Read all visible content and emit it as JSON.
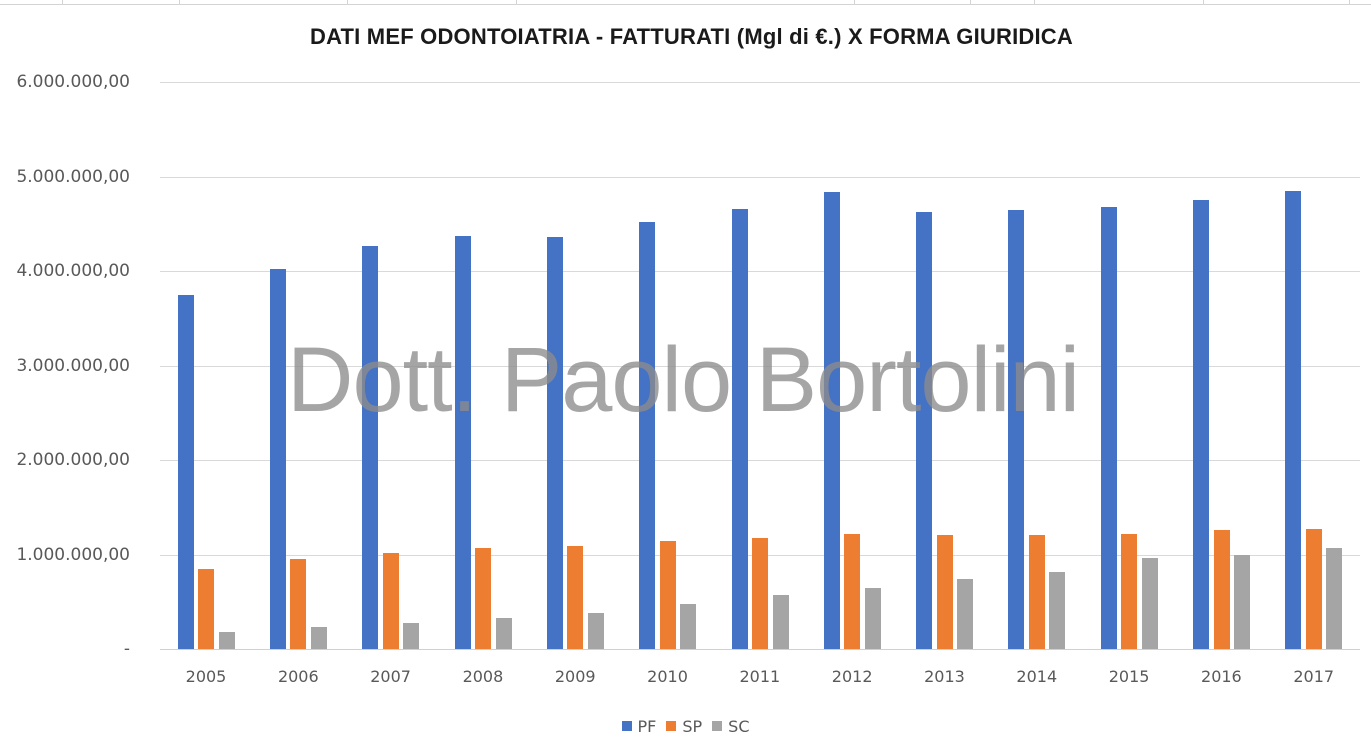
{
  "chart_data": {
    "type": "bar",
    "title": "DATI MEF ODONTOIATRIA - FATTURATI (Mgl di €.) X FORMA GIURIDICA",
    "xlabel": "",
    "ylabel": "",
    "ylim": [
      0,
      6000000
    ],
    "grid": true,
    "legend_position": "bottom",
    "y_ticks": [
      "-",
      "1.000.000,00",
      "2.000.000,00",
      "3.000.000,00",
      "4.000.000,00",
      "5.000.000,00",
      "6.000.000,00"
    ],
    "categories": [
      "2005",
      "2006",
      "2007",
      "2008",
      "2009",
      "2010",
      "2011",
      "2012",
      "2013",
      "2014",
      "2015",
      "2016",
      "2017"
    ],
    "series": [
      {
        "name": "PF",
        "color": "#4472C4",
        "values": [
          3750000,
          4020000,
          4270000,
          4370000,
          4360000,
          4520000,
          4660000,
          4840000,
          4620000,
          4650000,
          4680000,
          4750000,
          4850000
        ]
      },
      {
        "name": "SP",
        "color": "#ED7D31",
        "values": [
          850000,
          950000,
          1020000,
          1070000,
          1090000,
          1140000,
          1180000,
          1220000,
          1210000,
          1210000,
          1220000,
          1260000,
          1270000
        ]
      },
      {
        "name": "SC",
        "color": "#A5A5A5",
        "values": [
          180000,
          230000,
          280000,
          330000,
          380000,
          480000,
          570000,
          650000,
          740000,
          820000,
          960000,
          1000000,
          1070000
        ]
      }
    ],
    "annotations": [
      "Dott. Paolo Bortolini"
    ]
  },
  "watermark": "Dott. Paolo Bortolini",
  "legend": [
    {
      "label": "PF",
      "color": "#4472C4"
    },
    {
      "label": "SP",
      "color": "#ED7D31"
    },
    {
      "label": "SC",
      "color": "#A5A5A5"
    }
  ]
}
